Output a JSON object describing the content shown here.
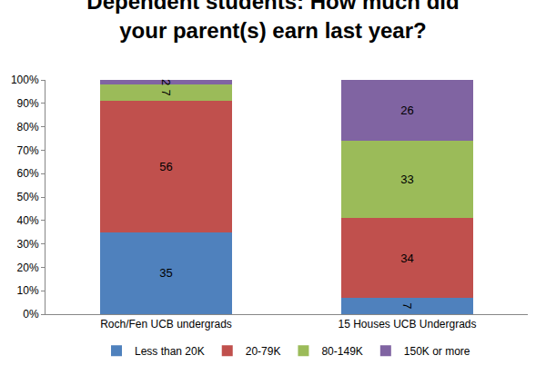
{
  "chart_data": {
    "type": "bar",
    "title": "Dependent students: How much did your parent(s) earn last year?",
    "categories": [
      "Roch/Fen UCB undergrads",
      "15 Houses UCB Undergrads"
    ],
    "series": [
      {
        "name": "Less than 20K",
        "color": "#4f81bd",
        "values": [
          35,
          7
        ]
      },
      {
        "name": "20-79K",
        "color": "#c0504d",
        "values": [
          56,
          34
        ]
      },
      {
        "name": "80-149K",
        "color": "#9bbb59",
        "values": [
          7,
          33
        ]
      },
      {
        "name": "150K or more",
        "color": "#8064a2",
        "values": [
          2,
          26
        ]
      }
    ],
    "stacked": true,
    "data_labels": true,
    "grid": false,
    "legend": "bottom",
    "ylim": [
      0,
      100
    ],
    "yticks": [
      {
        "value": 0,
        "label": "0%"
      },
      {
        "value": 10,
        "label": "10%"
      },
      {
        "value": 20,
        "label": "20%"
      },
      {
        "value": 30,
        "label": "30%"
      },
      {
        "value": 40,
        "label": "40%"
      },
      {
        "value": 50,
        "label": "50%"
      },
      {
        "value": 60,
        "label": "60%"
      },
      {
        "value": 70,
        "label": "70%"
      },
      {
        "value": 80,
        "label": "80%"
      },
      {
        "value": 90,
        "label": "90%"
      },
      {
        "value": 100,
        "label": "100%"
      }
    ]
  }
}
